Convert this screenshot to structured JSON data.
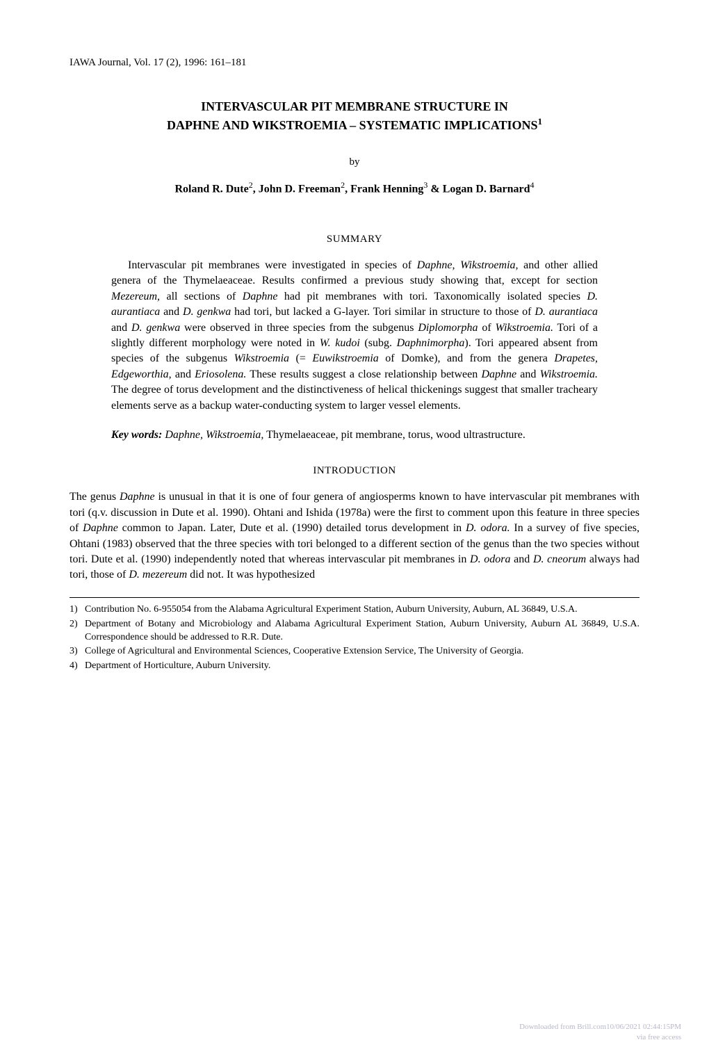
{
  "journal": {
    "citation": "IAWA Journal, Vol. 17 (2), 1996: 161–181"
  },
  "title": {
    "line1": "INTERVASCULAR PIT MEMBRANE STRUCTURE IN",
    "line2": "DAPHNE AND WIKSTROEMIA – SYSTEMATIC IMPLICATIONS",
    "sup": "1"
  },
  "byline": "by",
  "authors_html": "Roland R. Dute<sup>2</sup>, John D. Freeman<sup>2</sup>, Frank Henning<sup>3</sup> & Logan D. Barnard<sup>4</sup>",
  "sections": {
    "summary_heading": "SUMMARY",
    "introduction_heading": "INTRODUCTION"
  },
  "summary_html": "Intervascular pit membranes were investigated in species of <span class=\"italic\">Daphne, Wikstroemia,</span> and other allied genera of the Thymelaeaceae. Results confirmed a previous study showing that, except for section <span class=\"italic\">Mezereum,</span> all sections of <span class=\"italic\">Daphne</span> had pit membranes with tori. Taxonomically isolated species <span class=\"italic\">D. aurantiaca</span> and <span class=\"italic\">D. genkwa</span> had tori, but lacked a G-layer. Tori similar in structure to those of <span class=\"italic\">D. aurantiaca</span> and <span class=\"italic\">D. genkwa</span> were observed in three species from the subgenus <span class=\"italic\">Diplomorpha</span> of <span class=\"italic\">Wikstroemia.</span> Tori of a slightly different morphology were noted in <span class=\"italic\">W. kudoi</span> (subg. <span class=\"italic\">Daphnimorpha</span>). Tori appeared absent from species of the subgenus <span class=\"italic\">Wikstroemia</span> (= <span class=\"italic\">Euwikstroemia</span> of Domke), and from the genera <span class=\"italic\">Drapetes, Edgeworthia,</span> and <span class=\"italic\">Eriosolena.</span> These results suggest a close relationship between <span class=\"italic\">Daphne</span> and <span class=\"italic\">Wikstroemia.</span> The degree of torus development and the distinctiveness of helical thickenings suggest that smaller tracheary elements serve as a backup water-conducting system to larger vessel elements.",
  "keywords": {
    "label": "Key words:",
    "text_html": " <span class=\"italic\">Daphne, Wikstroemia,</span> Thymelaeaceae, pit membrane, torus, wood ultrastructure."
  },
  "introduction_html": "The genus <span class=\"italic\">Daphne</span> is unusual in that it is one of four genera of angiosperms known to have intervascular pit membranes with tori (q.v. discussion in Dute et al. 1990). Ohtani and Ishida (1978a) were the first to comment upon this feature in three species of <span class=\"italic\">Daphne</span> common to Japan. Later, Dute et al. (1990) detailed torus development in <span class=\"italic\">D. odora.</span> In a survey of five species, Ohtani (1983) observed that the three species with tori belonged to a different section of the genus than the two species without tori. Dute et al. (1990) independently noted that whereas intervascular pit membranes in <span class=\"italic\">D. odora</span> and <span class=\"italic\">D. cneorum</span> always had tori, those of <span class=\"italic\">D. mezereum</span> did not. It was hypothesized",
  "footnotes": [
    {
      "num": "1)",
      "text": "Contribution No. 6-955054 from the Alabama Agricultural Experiment Station, Auburn University, Auburn, AL 36849, U.S.A."
    },
    {
      "num": "2)",
      "text": "Department of Botany and Microbiology and Alabama Agricultural Experiment Station, Auburn University, Auburn AL 36849, U.S.A. Correspondence should be addressed to R.R. Dute."
    },
    {
      "num": "3)",
      "text": "College of Agricultural and Environmental Sciences, Cooperative Extension Service, The University of Georgia."
    },
    {
      "num": "4)",
      "text": "Department of Horticulture, Auburn University."
    }
  ],
  "watermark": {
    "line1": "Downloaded from Brill.com10/06/2021 02:44:15PM",
    "line2": "via free access"
  },
  "colors": {
    "text": "#000000",
    "background": "#ffffff",
    "watermark": "#b8b8c8",
    "rule": "#000000"
  },
  "typography": {
    "body_font": "Times New Roman",
    "body_size_pt": 12,
    "title_size_pt": 13,
    "footnote_size_pt": 10
  }
}
